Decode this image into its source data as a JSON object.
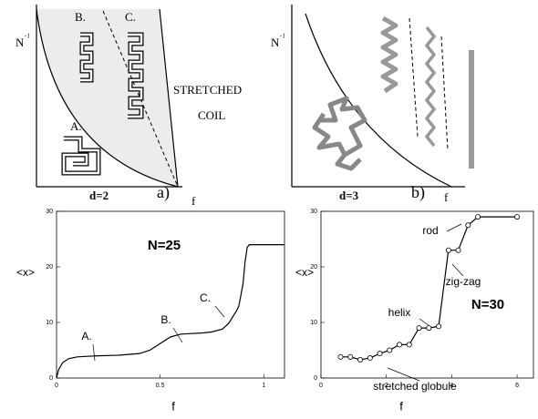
{
  "diagrams": [
    {
      "y_label": "N",
      "y_label_exp": "-1",
      "x_label": "f",
      "labels": [
        "B.",
        "C.",
        "A.",
        "STRETCHED",
        "COIL"
      ],
      "caption": "d=2",
      "panel": "a)"
    },
    {
      "y_label": "N",
      "y_label_exp": "-1",
      "x_label": "f",
      "caption": "d=3",
      "panel": "b)"
    }
  ],
  "chart_data": [
    {
      "type": "line",
      "x_label": "f",
      "y_label": "<x>",
      "color": "#000000",
      "x": [
        0,
        0.01,
        0.03,
        0.06,
        0.1,
        0.15,
        0.2,
        0.3,
        0.4,
        0.45,
        0.5,
        0.55,
        0.6,
        0.65,
        0.7,
        0.75,
        0.8,
        0.83,
        0.85,
        0.87,
        0.88,
        0.9,
        0.91,
        0.92,
        0.93,
        0.95,
        1.0,
        1.1
      ],
      "values": [
        0,
        1.5,
        2.8,
        3.5,
        3.8,
        3.9,
        4,
        4.1,
        4.4,
        5,
        6.2,
        7.4,
        7.9,
        8,
        8.1,
        8.3,
        8.8,
        9.8,
        11,
        12.2,
        13,
        17,
        21,
        23.5,
        24,
        24,
        24,
        24
      ],
      "xlim": [
        0,
        1.1
      ],
      "xticks": [
        0,
        0.5,
        1
      ],
      "ylim": [
        0,
        30
      ],
      "yticks": [
        0,
        10,
        20,
        30
      ],
      "annotations": [
        "N=25",
        "A.",
        "B.",
        "C."
      ]
    },
    {
      "type": "line-markers",
      "x_label": "f",
      "y_label": "<x>",
      "color": "#000000",
      "x": [
        0.6,
        0.9,
        1.2,
        1.5,
        1.8,
        2.1,
        2.4,
        2.7,
        3.0,
        3.3,
        3.6,
        3.9,
        4.2,
        4.5,
        4.8,
        6.0
      ],
      "values": [
        3.8,
        3.8,
        3.3,
        3.6,
        4.4,
        5,
        6,
        6,
        9,
        9,
        9.3,
        23,
        23,
        27.5,
        29,
        29
      ],
      "xlim": [
        0,
        6.5
      ],
      "xticks": [
        0,
        2,
        4,
        6
      ],
      "ylim": [
        0,
        30
      ],
      "yticks": [
        0,
        10,
        20,
        30
      ],
      "annotations": [
        "N=30",
        "rod",
        "zig-zag",
        "helix",
        "stretched globule"
      ]
    }
  ]
}
